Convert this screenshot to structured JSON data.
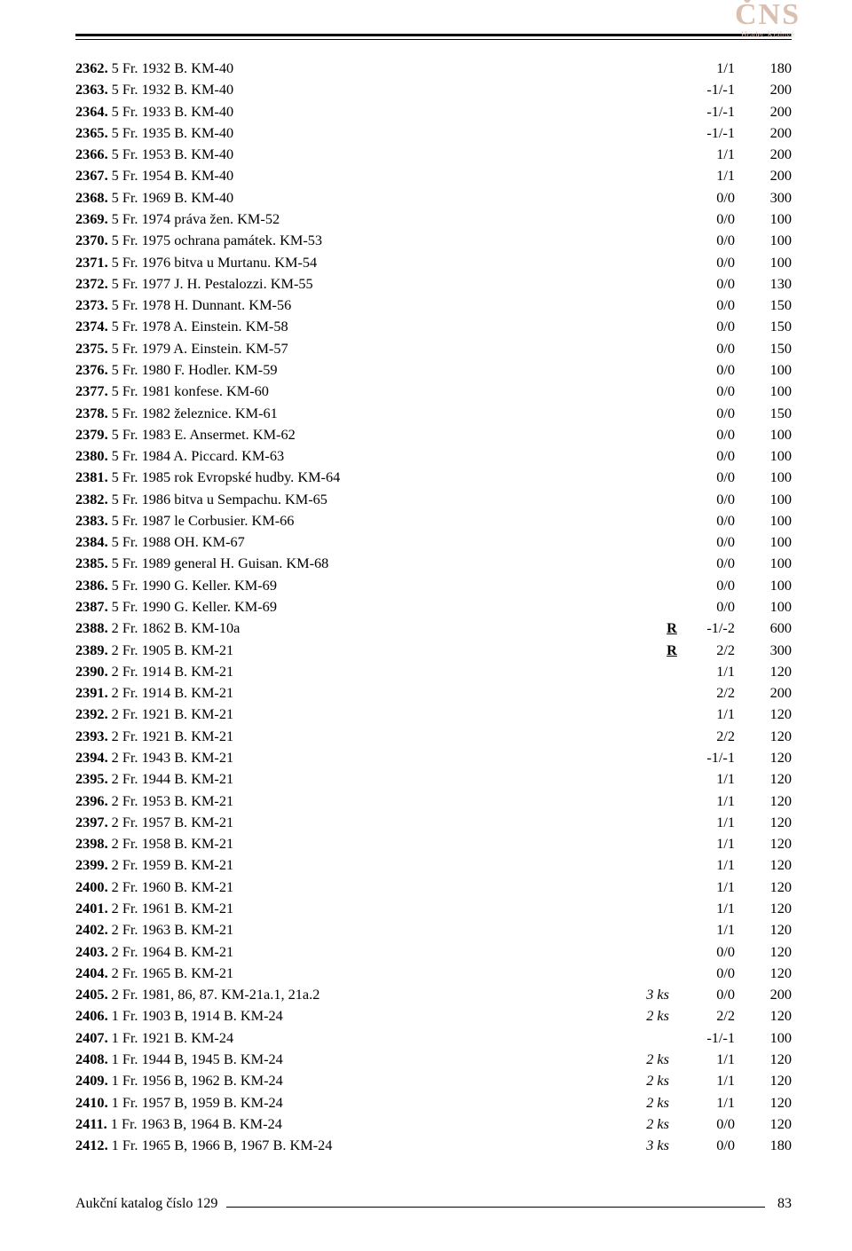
{
  "logo": {
    "main": "ČNS",
    "sub": "Hradec Králové"
  },
  "rows": [
    {
      "lot": "2362.",
      "desc": "5 Fr. 1932 B. KM-40",
      "note": "",
      "flag": "",
      "grade": "1/1",
      "price": "180"
    },
    {
      "lot": "2363.",
      "desc": "5 Fr. 1932 B. KM-40",
      "note": "",
      "flag": "",
      "grade": "-1/-1",
      "price": "200"
    },
    {
      "lot": "2364.",
      "desc": "5 Fr. 1933 B. KM-40",
      "note": "",
      "flag": "",
      "grade": "-1/-1",
      "price": "200"
    },
    {
      "lot": "2365.",
      "desc": "5 Fr. 1935 B. KM-40",
      "note": "",
      "flag": "",
      "grade": "-1/-1",
      "price": "200"
    },
    {
      "lot": "2366.",
      "desc": "5 Fr. 1953 B. KM-40",
      "note": "",
      "flag": "",
      "grade": "1/1",
      "price": "200"
    },
    {
      "lot": "2367.",
      "desc": "5 Fr. 1954 B. KM-40",
      "note": "",
      "flag": "",
      "grade": "1/1",
      "price": "200"
    },
    {
      "lot": "2368.",
      "desc": "5 Fr. 1969 B. KM-40",
      "note": "",
      "flag": "",
      "grade": "0/0",
      "price": "300"
    },
    {
      "lot": "2369.",
      "desc": "5 Fr. 1974 práva žen. KM-52",
      "note": "",
      "flag": "",
      "grade": "0/0",
      "price": "100"
    },
    {
      "lot": "2370.",
      "desc": "5 Fr. 1975 ochrana památek. KM-53",
      "note": "",
      "flag": "",
      "grade": "0/0",
      "price": "100"
    },
    {
      "lot": "2371.",
      "desc": "5 Fr. 1976 bitva u Murtanu. KM-54",
      "note": "",
      "flag": "",
      "grade": "0/0",
      "price": "100"
    },
    {
      "lot": "2372.",
      "desc": "5 Fr. 1977 J. H. Pestalozzi. KM-55",
      "note": "",
      "flag": "",
      "grade": "0/0",
      "price": "130"
    },
    {
      "lot": "2373.",
      "desc": "5 Fr. 1978 H. Dunnant. KM-56",
      "note": "",
      "flag": "",
      "grade": "0/0",
      "price": "150"
    },
    {
      "lot": "2374.",
      "desc": "5 Fr. 1978 A. Einstein. KM-58",
      "note": "",
      "flag": "",
      "grade": "0/0",
      "price": "150"
    },
    {
      "lot": "2375.",
      "desc": "5 Fr. 1979 A. Einstein. KM-57",
      "note": "",
      "flag": "",
      "grade": "0/0",
      "price": "150"
    },
    {
      "lot": "2376.",
      "desc": "5 Fr. 1980 F. Hodler. KM-59",
      "note": "",
      "flag": "",
      "grade": "0/0",
      "price": "100"
    },
    {
      "lot": "2377.",
      "desc": "5 Fr. 1981 konfese. KM-60",
      "note": "",
      "flag": "",
      "grade": "0/0",
      "price": "100"
    },
    {
      "lot": "2378.",
      "desc": "5 Fr. 1982 železnice. KM-61",
      "note": "",
      "flag": "",
      "grade": "0/0",
      "price": "150"
    },
    {
      "lot": "2379.",
      "desc": "5 Fr. 1983 E. Ansermet. KM-62",
      "note": "",
      "flag": "",
      "grade": "0/0",
      "price": "100"
    },
    {
      "lot": "2380.",
      "desc": "5 Fr. 1984 A. Piccard. KM-63",
      "note": "",
      "flag": "",
      "grade": "0/0",
      "price": "100"
    },
    {
      "lot": "2381.",
      "desc": "5 Fr. 1985 rok Evropské hudby. KM-64",
      "note": "",
      "flag": "",
      "grade": "0/0",
      "price": "100"
    },
    {
      "lot": "2382.",
      "desc": "5 Fr. 1986 bitva u Sempachu. KM-65",
      "note": "",
      "flag": "",
      "grade": "0/0",
      "price": "100"
    },
    {
      "lot": "2383.",
      "desc": "5 Fr. 1987 le Corbusier. KM-66",
      "note": "",
      "flag": "",
      "grade": "0/0",
      "price": "100"
    },
    {
      "lot": "2384.",
      "desc": "5 Fr. 1988 OH. KM-67",
      "note": "",
      "flag": "",
      "grade": "0/0",
      "price": "100"
    },
    {
      "lot": "2385.",
      "desc": "5 Fr. 1989 general H. Guisan. KM-68",
      "note": "",
      "flag": "",
      "grade": "0/0",
      "price": "100"
    },
    {
      "lot": "2386.",
      "desc": "5 Fr. 1990 G. Keller. KM-69",
      "note": "",
      "flag": "",
      "grade": "0/0",
      "price": "100"
    },
    {
      "lot": "2387.",
      "desc": "5 Fr. 1990 G. Keller. KM-69",
      "note": "",
      "flag": "",
      "grade": "0/0",
      "price": "100"
    },
    {
      "lot": "2388.",
      "desc": "2 Fr. 1862 B. KM-10a",
      "note": "",
      "flag": "R",
      "grade": "-1/-2",
      "price": "600"
    },
    {
      "lot": "2389.",
      "desc": "2 Fr. 1905 B. KM-21",
      "note": "",
      "flag": "R",
      "grade": "2/2",
      "price": "300"
    },
    {
      "lot": "2390.",
      "desc": "2 Fr. 1914 B. KM-21",
      "note": "",
      "flag": "",
      "grade": "1/1",
      "price": "120"
    },
    {
      "lot": "2391.",
      "desc": "2 Fr. 1914 B. KM-21",
      "note": "",
      "flag": "",
      "grade": "2/2",
      "price": "200"
    },
    {
      "lot": "2392.",
      "desc": "2 Fr. 1921 B. KM-21",
      "note": "",
      "flag": "",
      "grade": "1/1",
      "price": "120"
    },
    {
      "lot": "2393.",
      "desc": "2 Fr. 1921 B. KM-21",
      "note": "",
      "flag": "",
      "grade": "2/2",
      "price": "120"
    },
    {
      "lot": "2394.",
      "desc": "2 Fr. 1943 B. KM-21",
      "note": "",
      "flag": "",
      "grade": "-1/-1",
      "price": "120"
    },
    {
      "lot": "2395.",
      "desc": "2 Fr. 1944 B. KM-21",
      "note": "",
      "flag": "",
      "grade": "1/1",
      "price": "120"
    },
    {
      "lot": "2396.",
      "desc": "2 Fr. 1953 B. KM-21",
      "note": "",
      "flag": "",
      "grade": "1/1",
      "price": "120"
    },
    {
      "lot": "2397.",
      "desc": "2 Fr. 1957 B. KM-21",
      "note": "",
      "flag": "",
      "grade": "1/1",
      "price": "120"
    },
    {
      "lot": "2398.",
      "desc": "2 Fr. 1958 B. KM-21",
      "note": "",
      "flag": "",
      "grade": "1/1",
      "price": "120"
    },
    {
      "lot": "2399.",
      "desc": "2 Fr. 1959 B. KM-21",
      "note": "",
      "flag": "",
      "grade": "1/1",
      "price": "120"
    },
    {
      "lot": "2400.",
      "desc": "2 Fr. 1960 B. KM-21",
      "note": "",
      "flag": "",
      "grade": "1/1",
      "price": "120"
    },
    {
      "lot": "2401.",
      "desc": "2 Fr. 1961 B. KM-21",
      "note": "",
      "flag": "",
      "grade": "1/1",
      "price": "120"
    },
    {
      "lot": "2402.",
      "desc": "2 Fr. 1963 B. KM-21",
      "note": "",
      "flag": "",
      "grade": "1/1",
      "price": "120"
    },
    {
      "lot": "2403.",
      "desc": "2 Fr. 1964 B. KM-21",
      "note": "",
      "flag": "",
      "grade": "0/0",
      "price": "120"
    },
    {
      "lot": "2404.",
      "desc": "2 Fr. 1965 B. KM-21",
      "note": "",
      "flag": "",
      "grade": "0/0",
      "price": "120"
    },
    {
      "lot": "2405.",
      "desc": "2 Fr. 1981, 86, 87. KM-21a.1, 21a.2",
      "note": "3 ks",
      "flag": "",
      "grade": "0/0",
      "price": "200"
    },
    {
      "lot": "2406.",
      "desc": "1 Fr. 1903 B, 1914 B. KM-24",
      "note": "2 ks",
      "flag": "",
      "grade": "2/2",
      "price": "120"
    },
    {
      "lot": "2407.",
      "desc": "1 Fr. 1921 B. KM-24",
      "note": "",
      "flag": "",
      "grade": "-1/-1",
      "price": "100"
    },
    {
      "lot": "2408.",
      "desc": "1 Fr. 1944 B, 1945 B. KM-24",
      "note": "2 ks",
      "flag": "",
      "grade": "1/1",
      "price": "120"
    },
    {
      "lot": "2409.",
      "desc": "1 Fr. 1956 B, 1962 B. KM-24",
      "note": "2 ks",
      "flag": "",
      "grade": "1/1",
      "price": "120"
    },
    {
      "lot": "2410.",
      "desc": "1 Fr. 1957 B, 1959 B. KM-24",
      "note": "2 ks",
      "flag": "",
      "grade": "1/1",
      "price": "120"
    },
    {
      "lot": "2411.",
      "desc": "1 Fr. 1963 B, 1964 B. KM-24",
      "note": "2 ks",
      "flag": "",
      "grade": "0/0",
      "price": "120"
    },
    {
      "lot": "2412.",
      "desc": "1 Fr. 1965 B, 1966 B, 1967 B. KM-24",
      "note": "3 ks",
      "flag": "",
      "grade": "0/0",
      "price": "180"
    }
  ],
  "footer": {
    "text": "Aukční katalog číslo 129",
    "page": "83"
  }
}
